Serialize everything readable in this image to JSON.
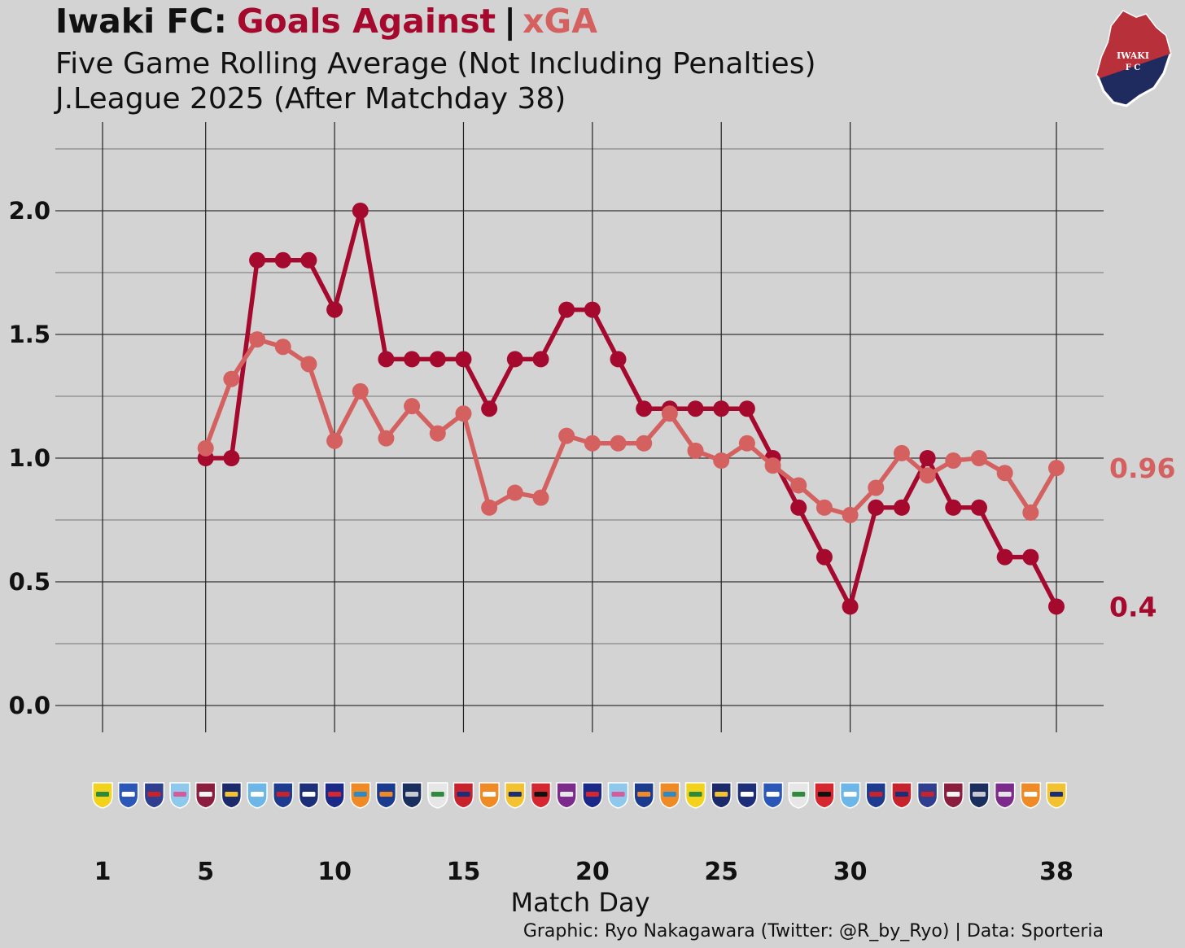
{
  "title": {
    "team": "Iwaki FC:",
    "goals_against": "Goals Against",
    "separator": "|",
    "xga": "xGA",
    "subtitle_line1": "Five Game Rolling Average (Not Including Penalties)",
    "subtitle_line2": "J.League 2025 (After Matchday 38)"
  },
  "logo": {
    "text_line1": "IWAKI",
    "text_line2": "F C",
    "icon": "iwaki-fc-crest-icon"
  },
  "colors": {
    "background": "#d3d3d3",
    "goals_against": "#a50a2e",
    "xga": "#d46060",
    "text": "#111111",
    "grid": "#222222"
  },
  "chart_data": {
    "type": "line",
    "title": "Iwaki FC: Goals Against | xGA",
    "subtitle": "Five Game Rolling Average (Not Including Penalties) / J.League 2025 (After Matchday 38)",
    "xlabel": "Match Day",
    "ylabel": "",
    "xlim": [
      1,
      38
    ],
    "ylim": [
      -0.1,
      2.35
    ],
    "x_ticks": [
      1,
      5,
      10,
      15,
      20,
      25,
      30,
      38
    ],
    "y_ticks": [
      0.0,
      0.5,
      1.0,
      1.5,
      2.0
    ],
    "y_tick_labels": [
      "0.0",
      "0.5",
      "1.0",
      "1.5",
      "2.0"
    ],
    "grid": true,
    "series": [
      {
        "name": "Goals Against",
        "color_key": "goals_against",
        "end_label": "0.4",
        "x": [
          5,
          6,
          7,
          8,
          9,
          10,
          11,
          12,
          13,
          14,
          15,
          16,
          17,
          18,
          19,
          20,
          21,
          22,
          23,
          24,
          25,
          26,
          27,
          28,
          29,
          30,
          31,
          32,
          33,
          34,
          35,
          36,
          37,
          38
        ],
        "values": [
          1.0,
          1.0,
          1.8,
          1.8,
          1.8,
          1.6,
          2.0,
          1.4,
          1.4,
          1.4,
          1.4,
          1.2,
          1.4,
          1.4,
          1.6,
          1.6,
          1.4,
          1.2,
          1.2,
          1.2,
          1.2,
          1.2,
          1.0,
          0.8,
          0.6,
          0.4,
          0.8,
          0.8,
          1.0,
          0.8,
          0.8,
          0.6,
          0.6,
          0.4
        ]
      },
      {
        "name": "xGA",
        "color_key": "xga",
        "end_label": "0.96",
        "x": [
          5,
          6,
          7,
          8,
          9,
          10,
          11,
          12,
          13,
          14,
          15,
          16,
          17,
          18,
          19,
          20,
          21,
          22,
          23,
          24,
          25,
          26,
          27,
          28,
          29,
          30,
          31,
          32,
          33,
          34,
          35,
          36,
          37,
          38
        ],
        "values": [
          1.04,
          1.32,
          1.48,
          1.45,
          1.38,
          1.07,
          1.27,
          1.08,
          1.21,
          1.1,
          1.18,
          0.8,
          0.86,
          0.84,
          1.09,
          1.06,
          1.06,
          1.06,
          1.18,
          1.03,
          0.99,
          1.06,
          0.97,
          0.89,
          0.8,
          0.77,
          0.88,
          1.02,
          0.93,
          0.99,
          1.0,
          0.94,
          0.78,
          0.96
        ]
      }
    ],
    "opponent_logos": [
      "jef-united-icon",
      "jubilo-iwata-icon",
      "tokushima-vortis-icon",
      "sagan-tosu-icon",
      "fagiano-okayama-icon",
      "mito-hollyhock-icon",
      "yokohama-fc-icon",
      "montedio-yamagata-icon",
      "blaublitz-akita-icon",
      "kataller-toyama-icon",
      "ehime-fc-icon",
      "oita-trinita-icon",
      "fc-imabari-icon",
      "tochigi-sc-icon",
      "roasso-kumamoto-icon",
      "renofa-yamaguchi-icon",
      "vegalta-sendai-icon",
      "consadole-sapporo-icon",
      "fujieda-myfc-icon",
      "kataller-toyama-icon",
      "sagan-tosu-icon",
      "oita-trinita-icon",
      "ehime-fc-icon",
      "jef-united-icon",
      "mito-hollyhock-icon",
      "blaublitz-akita-icon",
      "jubilo-iwata-icon",
      "tochigi-sc-icon",
      "consadole-sapporo-icon",
      "yokohama-fc-icon",
      "montedio-yamagata-icon",
      "roasso-kumamoto-icon",
      "tokushima-vortis-icon",
      "fagiano-okayama-icon",
      "fc-imabari-icon",
      "fujieda-myfc-icon",
      "renofa-yamaguchi-icon",
      "vegalta-sendai-icon"
    ]
  },
  "caption": "Graphic: Ryo Nakagawara (Twitter: @R_by_Ryo) | Data: Sporteria"
}
